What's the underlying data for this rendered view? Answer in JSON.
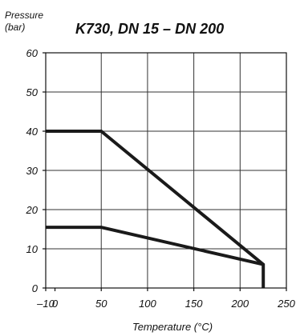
{
  "chart_data": {
    "type": "line",
    "title": "K730, DN 15 – DN 200",
    "ylabel_line1": "Pressure",
    "ylabel_line2": "(bar)",
    "xlabel": "Temperature (°C)",
    "xlim": [
      -10,
      250
    ],
    "ylim": [
      0,
      60
    ],
    "x_ticks": [
      -10,
      0,
      50,
      100,
      150,
      200,
      250
    ],
    "x_tick_labels": [
      "–10",
      "0",
      "50",
      "100",
      "150",
      "200",
      "250"
    ],
    "y_ticks": [
      0,
      10,
      20,
      30,
      40,
      50,
      60
    ],
    "y_tick_labels": [
      "0",
      "10",
      "20",
      "30",
      "40",
      "50",
      "60"
    ],
    "x_gridlines": [
      50,
      100,
      150,
      200
    ],
    "y_gridlines": [
      10,
      20,
      30,
      40,
      50
    ],
    "grid": true,
    "series": [
      {
        "color": "#1a1a1a",
        "x": [
          -10,
          50,
          225,
          225
        ],
        "y": [
          40,
          40,
          6,
          0
        ]
      },
      {
        "color": "#1a1a1a",
        "x": [
          -10,
          50,
          225
        ],
        "y": [
          15.5,
          15.5,
          6
        ]
      }
    ],
    "colors": {
      "axis": "#111111",
      "grid": "#333333",
      "series": "#1a1a1a"
    }
  }
}
